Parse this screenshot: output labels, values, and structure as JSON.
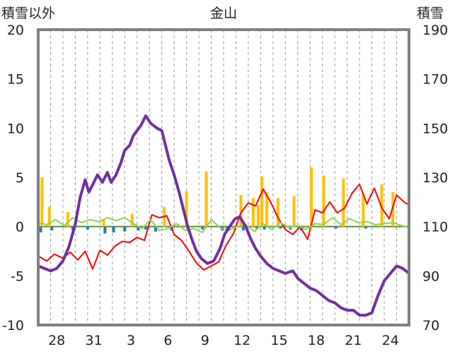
{
  "chart_data": {
    "type": "line",
    "title": "金山",
    "ylabel_left": "積雪以外",
    "ylabel_right": "積雪",
    "y_left": {
      "ticks": [
        "20",
        "15",
        "10",
        "5",
        "0",
        "-5",
        "-10"
      ],
      "values": [
        20,
        15,
        10,
        5,
        0,
        -5,
        -10
      ],
      "range": [
        -10,
        20
      ]
    },
    "y_right": {
      "ticks": [
        "190",
        "170",
        "150",
        "130",
        "110",
        "90",
        "70"
      ],
      "values": [
        190,
        170,
        150,
        130,
        110,
        90,
        70
      ],
      "range": [
        70,
        190
      ]
    },
    "x_ticks": [
      "28",
      "31",
      "3",
      "6",
      "9",
      "12",
      "15",
      "18",
      "21",
      "24"
    ],
    "x_range": [
      0,
      30
    ],
    "x_tick_positions": [
      1.5,
      4.5,
      7.5,
      10.5,
      13.5,
      16.5,
      19.5,
      22.5,
      25.5,
      28.5
    ],
    "grid": "vertical dashed",
    "series": [
      {
        "axis": "right",
        "color": "#7030a0",
        "points": [
          [
            0.0,
            94
          ],
          [
            0.5,
            93
          ],
          [
            1.0,
            92
          ],
          [
            1.5,
            93
          ],
          [
            2.0,
            96
          ],
          [
            2.5,
            102
          ],
          [
            3.0,
            111
          ],
          [
            3.4,
            122
          ],
          [
            3.8,
            129
          ],
          [
            4.1,
            124
          ],
          [
            4.4,
            127
          ],
          [
            4.8,
            131
          ],
          [
            5.2,
            128
          ],
          [
            5.6,
            132
          ],
          [
            5.9,
            128
          ],
          [
            6.3,
            131
          ],
          [
            6.7,
            136
          ],
          [
            7.0,
            141
          ],
          [
            7.4,
            143
          ],
          [
            7.7,
            147
          ],
          [
            8.0,
            149
          ],
          [
            8.3,
            151
          ],
          [
            8.7,
            155
          ],
          [
            9.1,
            152
          ],
          [
            9.6,
            150
          ],
          [
            10.0,
            149
          ],
          [
            10.3,
            143
          ],
          [
            10.6,
            137
          ],
          [
            11.0,
            131
          ],
          [
            11.4,
            124
          ],
          [
            11.8,
            116
          ],
          [
            12.1,
            110
          ],
          [
            12.5,
            104
          ],
          [
            12.8,
            100
          ],
          [
            13.2,
            97
          ],
          [
            13.7,
            95
          ],
          [
            14.2,
            96
          ],
          [
            14.7,
            101
          ],
          [
            15.1,
            107
          ],
          [
            15.5,
            110
          ],
          [
            15.9,
            113
          ],
          [
            16.3,
            114
          ],
          [
            16.8,
            110
          ],
          [
            17.2,
            105
          ],
          [
            17.6,
            101
          ],
          [
            18.0,
            98
          ],
          [
            18.5,
            95
          ],
          [
            19.0,
            93
          ],
          [
            19.5,
            92
          ],
          [
            20.0,
            91
          ],
          [
            20.6,
            92
          ],
          [
            21.0,
            89
          ],
          [
            21.5,
            87
          ],
          [
            22.0,
            85
          ],
          [
            22.5,
            84
          ],
          [
            23.0,
            82
          ],
          [
            23.5,
            80
          ],
          [
            24.0,
            79
          ],
          [
            24.5,
            77
          ],
          [
            25.0,
            76
          ],
          [
            25.5,
            76
          ],
          [
            26.0,
            74
          ],
          [
            26.5,
            74
          ],
          [
            27.0,
            75
          ],
          [
            27.5,
            82
          ],
          [
            28.0,
            88
          ],
          [
            28.5,
            91
          ],
          [
            29.0,
            94
          ],
          [
            29.5,
            93
          ],
          [
            30.0,
            91
          ]
        ]
      },
      {
        "axis": "left",
        "color": "#ff0000",
        "points": [
          [
            0.0,
            -3.0
          ],
          [
            0.7,
            -3.5
          ],
          [
            1.3,
            -2.8
          ],
          [
            2.0,
            -3.2
          ],
          [
            2.6,
            -2.6
          ],
          [
            3.2,
            -3.4
          ],
          [
            3.8,
            -2.5
          ],
          [
            4.4,
            -4.3
          ],
          [
            5.0,
            -2.4
          ],
          [
            5.6,
            -2.9
          ],
          [
            6.2,
            -2.0
          ],
          [
            6.8,
            -1.5
          ],
          [
            7.4,
            -1.6
          ],
          [
            8.0,
            -1.1
          ],
          [
            8.6,
            -1.4
          ],
          [
            9.2,
            1.2
          ],
          [
            9.8,
            0.9
          ],
          [
            10.4,
            1.1
          ],
          [
            11.0,
            -0.8
          ],
          [
            11.6,
            -1.4
          ],
          [
            12.2,
            -2.5
          ],
          [
            12.8,
            -3.7
          ],
          [
            13.4,
            -4.4
          ],
          [
            14.0,
            -4.0
          ],
          [
            14.6,
            -3.6
          ],
          [
            15.2,
            -1.9
          ],
          [
            15.8,
            -0.7
          ],
          [
            16.4,
            1.4
          ],
          [
            17.0,
            2.4
          ],
          [
            17.6,
            2.1
          ],
          [
            18.2,
            3.8
          ],
          [
            18.8,
            2.5
          ],
          [
            19.4,
            0.9
          ],
          [
            20.0,
            -0.3
          ],
          [
            20.6,
            -0.8
          ],
          [
            21.2,
            0.0
          ],
          [
            21.8,
            -1.3
          ],
          [
            22.4,
            1.7
          ],
          [
            23.0,
            1.4
          ],
          [
            23.6,
            2.5
          ],
          [
            24.2,
            1.4
          ],
          [
            24.8,
            1.9
          ],
          [
            25.4,
            3.4
          ],
          [
            26.0,
            4.3
          ],
          [
            26.6,
            2.3
          ],
          [
            27.2,
            3.9
          ],
          [
            27.8,
            1.9
          ],
          [
            28.4,
            0.8
          ],
          [
            29.0,
            3.2
          ],
          [
            29.6,
            2.5
          ],
          [
            30.0,
            2.2
          ]
        ]
      },
      {
        "axis": "left",
        "color": "#92d050",
        "points": [
          [
            0.0,
            0.4
          ],
          [
            0.7,
            0.2
          ],
          [
            1.4,
            0.7
          ],
          [
            2.1,
            0.1
          ],
          [
            2.8,
            0.9
          ],
          [
            3.5,
            0.4
          ],
          [
            4.2,
            0.7
          ],
          [
            4.9,
            0.5
          ],
          [
            5.6,
            0.9
          ],
          [
            6.3,
            0.6
          ],
          [
            7.0,
            0.9
          ],
          [
            7.7,
            0.3
          ],
          [
            8.4,
            -0.2
          ],
          [
            9.1,
            0.7
          ],
          [
            9.8,
            -0.4
          ],
          [
            10.5,
            -0.2
          ],
          [
            11.2,
            0.3
          ],
          [
            11.9,
            -0.4
          ],
          [
            12.6,
            -0.2
          ],
          [
            13.3,
            -0.6
          ],
          [
            14.0,
            0.7
          ],
          [
            14.7,
            -0.1
          ],
          [
            15.4,
            -0.4
          ],
          [
            16.1,
            0.0
          ],
          [
            16.8,
            0.2
          ],
          [
            17.5,
            -0.5
          ],
          [
            18.2,
            0.3
          ],
          [
            18.9,
            -0.3
          ],
          [
            19.6,
            0.4
          ],
          [
            20.3,
            -0.1
          ],
          [
            21.0,
            0.1
          ],
          [
            21.7,
            -0.3
          ],
          [
            22.4,
            0.3
          ],
          [
            23.1,
            0.2
          ],
          [
            23.8,
            0.9
          ],
          [
            24.5,
            0.2
          ],
          [
            25.2,
            0.8
          ],
          [
            25.9,
            0.4
          ],
          [
            26.6,
            0.5
          ],
          [
            27.3,
            0.2
          ],
          [
            28.0,
            0.3
          ],
          [
            28.7,
            0.4
          ],
          [
            29.4,
            0.1
          ],
          [
            30.0,
            -0.1
          ]
        ]
      },
      {
        "axis": "left",
        "color": "#ffc000",
        "bars": [
          [
            0.3,
            5.0
          ],
          [
            0.9,
            2.0
          ],
          [
            2.4,
            1.5
          ],
          [
            5.3,
            0.7
          ],
          [
            7.6,
            1.3
          ],
          [
            10.2,
            2.0
          ],
          [
            12.0,
            3.6
          ],
          [
            13.6,
            5.6
          ],
          [
            16.4,
            3.2
          ],
          [
            17.4,
            2.9
          ],
          [
            17.8,
            2.2
          ],
          [
            18.1,
            5.1
          ],
          [
            18.5,
            3.5
          ],
          [
            19.4,
            2.9
          ],
          [
            20.7,
            3.1
          ],
          [
            22.1,
            6.0
          ],
          [
            23.1,
            5.2
          ],
          [
            24.7,
            4.9
          ],
          [
            26.3,
            3.4
          ],
          [
            27.8,
            4.3
          ],
          [
            28.7,
            3.5
          ]
        ]
      },
      {
        "axis": "left",
        "color": "#1f7fbf",
        "bars": [
          [
            0.2,
            -0.6
          ],
          [
            1.1,
            -0.4
          ],
          [
            2.8,
            -0.4
          ],
          [
            4.0,
            -0.3
          ],
          [
            5.4,
            -0.7
          ],
          [
            6.1,
            -0.6
          ],
          [
            7.0,
            -0.5
          ],
          [
            8.1,
            -0.4
          ],
          [
            8.7,
            -0.3
          ],
          [
            9.5,
            -0.5
          ],
          [
            10.8,
            -0.4
          ],
          [
            13.3,
            -0.3
          ],
          [
            14.9,
            -0.4
          ],
          [
            15.3,
            -0.2
          ],
          [
            16.6,
            -0.4
          ],
          [
            17.7,
            -0.2
          ],
          [
            18.3,
            -0.3
          ],
          [
            19.6,
            -0.2
          ],
          [
            20.4,
            -0.3
          ],
          [
            21.3,
            -0.4
          ],
          [
            24.1,
            -0.2
          ],
          [
            26.5,
            -0.2
          ]
        ]
      }
    ]
  }
}
